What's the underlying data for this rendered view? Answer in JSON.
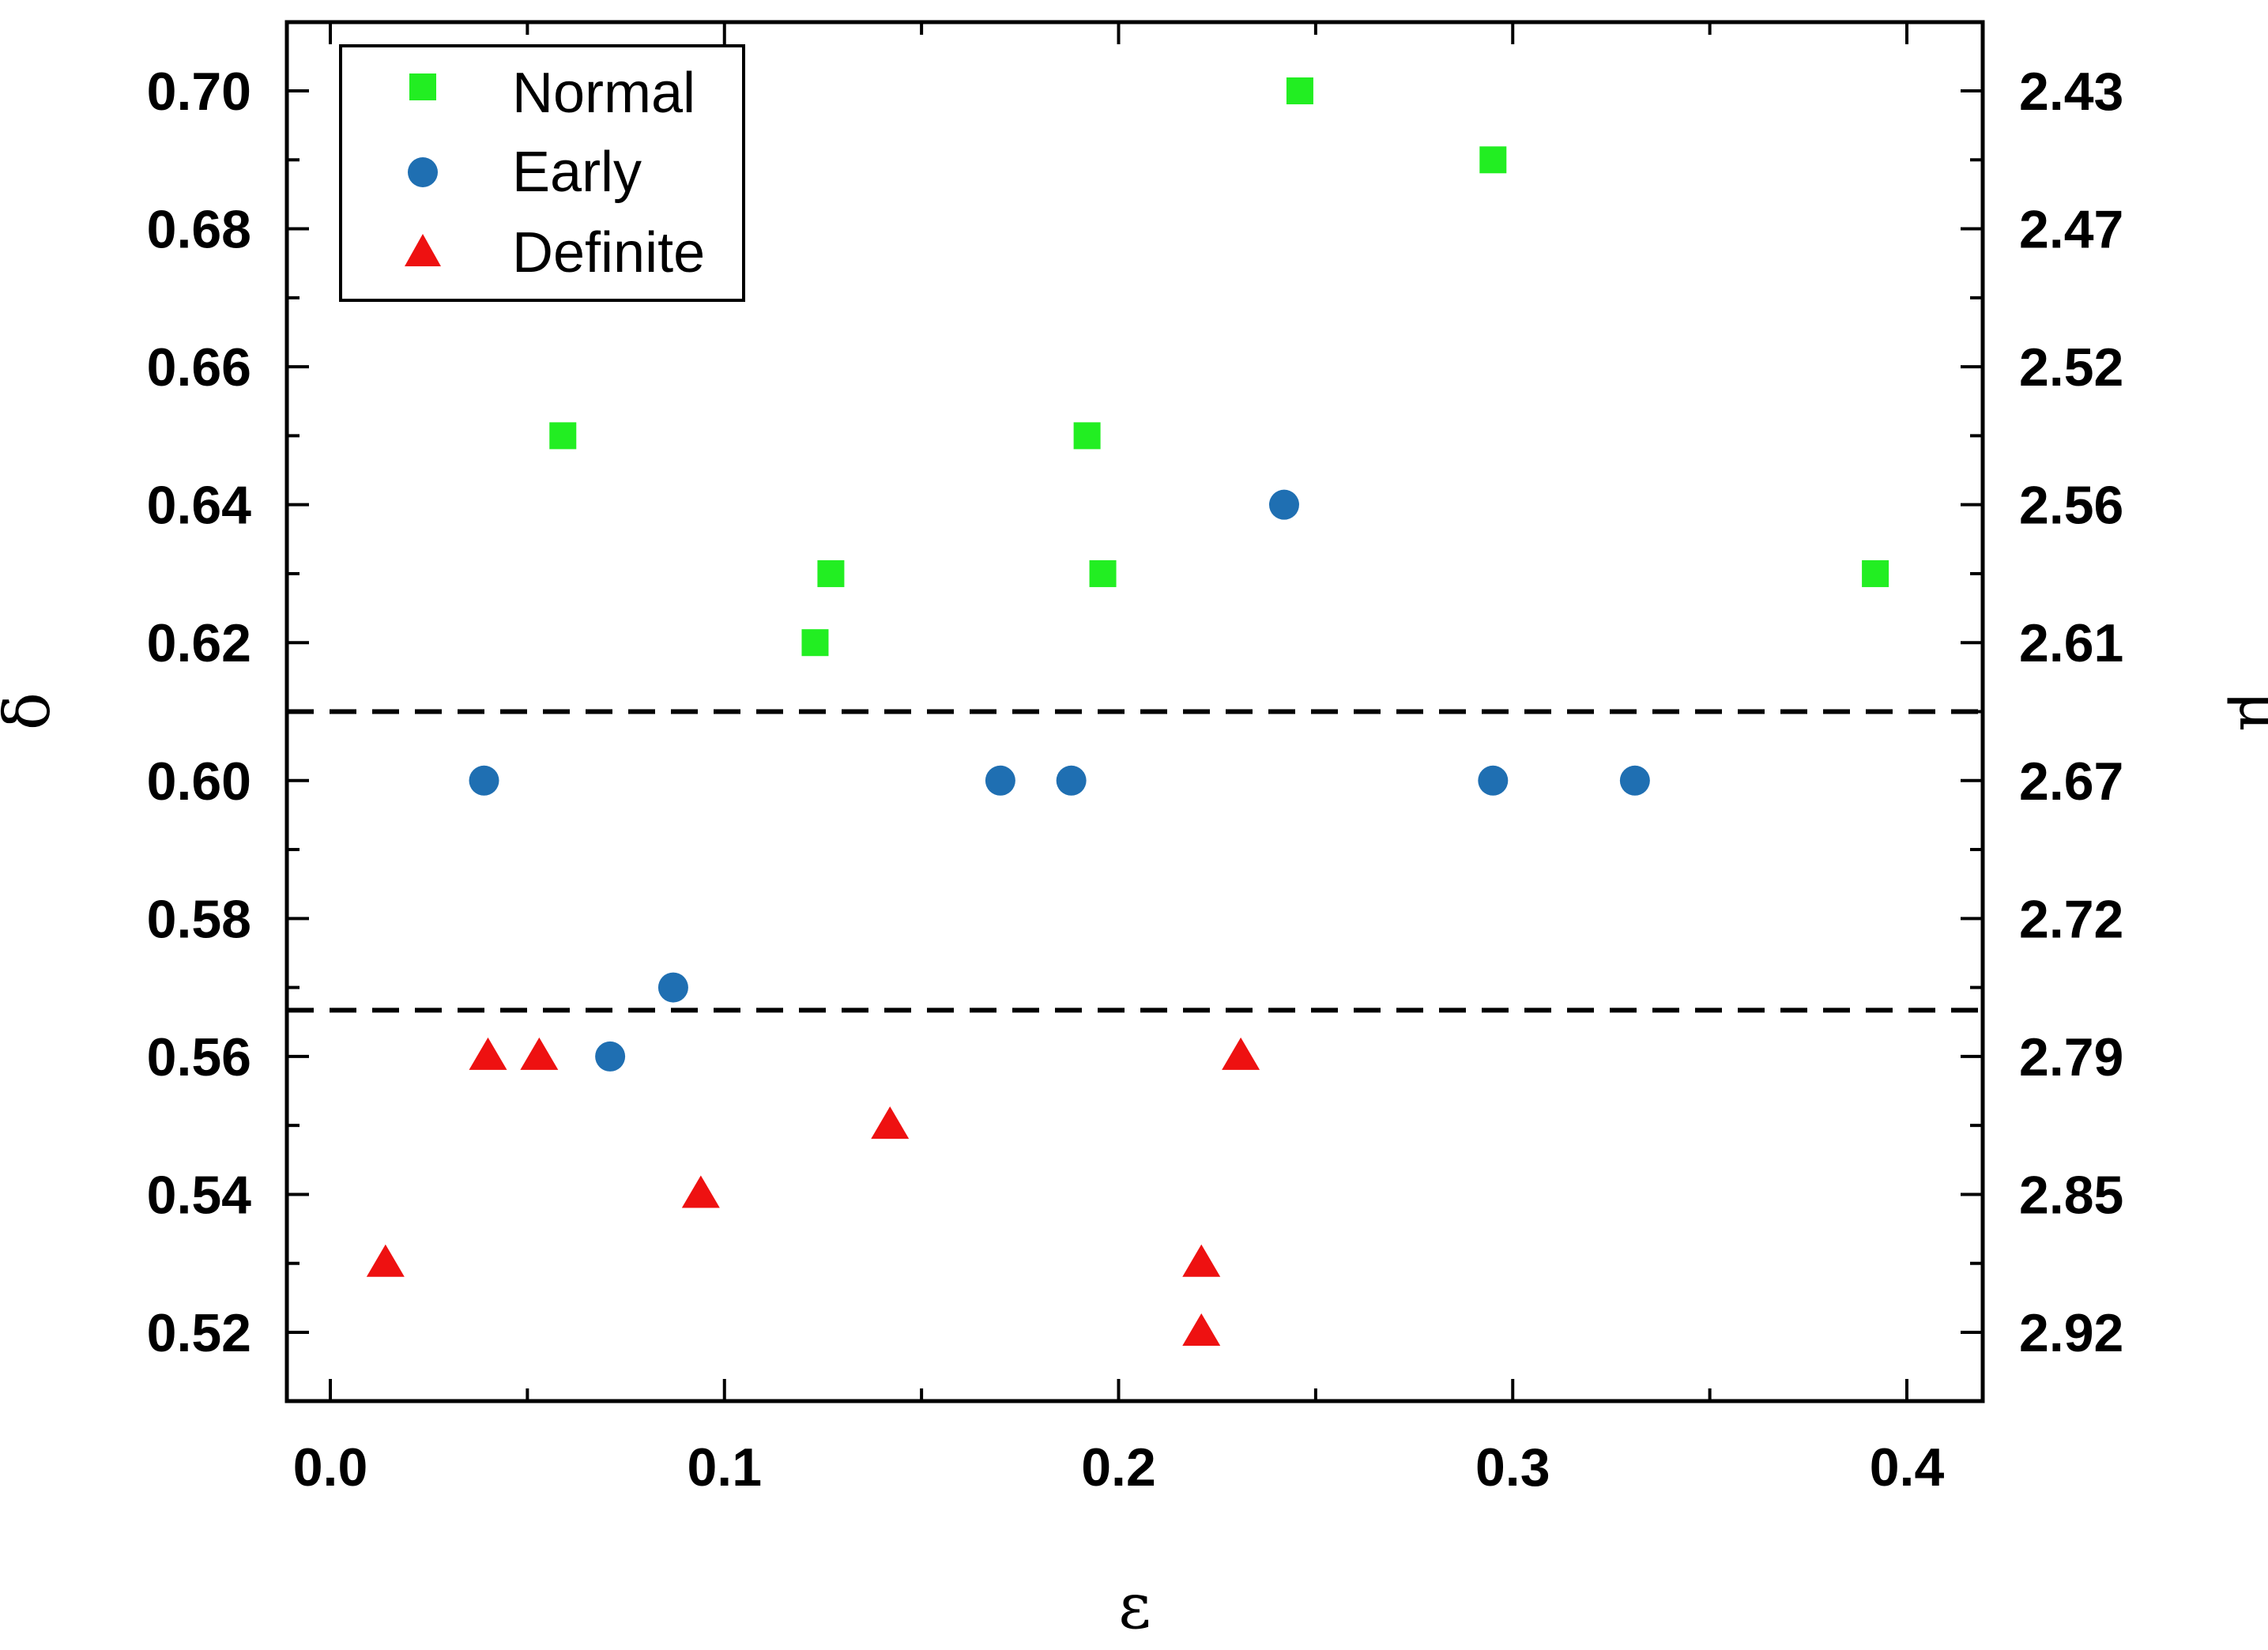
{
  "chart_data": {
    "type": "scatter",
    "title": "",
    "xlabel": "ε",
    "ylabel": "δ",
    "ylabel_right": "μ",
    "xlim": [
      -0.01,
      0.42
    ],
    "ylim": [
      0.51,
      0.71
    ],
    "x_ticks": [
      0.0,
      0.1,
      0.2,
      0.3,
      0.4
    ],
    "x_tick_labels": [
      "0.0",
      "0.1",
      "0.2",
      "0.3",
      "0.4"
    ],
    "y_ticks": [
      0.52,
      0.54,
      0.56,
      0.58,
      0.6,
      0.62,
      0.64,
      0.66,
      0.68,
      0.7
    ],
    "y_tick_labels": [
      "0.52",
      "0.54",
      "0.56",
      "0.58",
      "0.60",
      "0.62",
      "0.64",
      "0.66",
      "0.68",
      "0.70"
    ],
    "right_tick_labels": [
      "2.92",
      "2.85",
      "2.79",
      "2.72",
      "2.67",
      "2.61",
      "2.56",
      "2.52",
      "2.47",
      "2.43"
    ],
    "grid": false,
    "legend_position": "top-left",
    "reference_lines": [
      {
        "style": "dashed",
        "y": 0.61
      },
      {
        "style": "dashed",
        "y": 0.5667
      }
    ],
    "series": [
      {
        "name": "Normal",
        "marker": "square",
        "color": "#22ee22",
        "points": [
          {
            "x": 0.059,
            "y": 0.65
          },
          {
            "x": 0.123,
            "y": 0.62
          },
          {
            "x": 0.127,
            "y": 0.63
          },
          {
            "x": 0.192,
            "y": 0.65
          },
          {
            "x": 0.196,
            "y": 0.63
          },
          {
            "x": 0.246,
            "y": 0.7
          },
          {
            "x": 0.295,
            "y": 0.69
          },
          {
            "x": 0.392,
            "y": 0.63
          }
        ]
      },
      {
        "name": "Early",
        "marker": "circle",
        "color": "#1f6fb2",
        "points": [
          {
            "x": 0.039,
            "y": 0.6
          },
          {
            "x": 0.071,
            "y": 0.56
          },
          {
            "x": 0.087,
            "y": 0.57
          },
          {
            "x": 0.17,
            "y": 0.6
          },
          {
            "x": 0.188,
            "y": 0.6
          },
          {
            "x": 0.242,
            "y": 0.64
          },
          {
            "x": 0.295,
            "y": 0.6
          },
          {
            "x": 0.331,
            "y": 0.6
          }
        ]
      },
      {
        "name": "Definite",
        "marker": "triangle",
        "color": "#ee1111",
        "points": [
          {
            "x": 0.014,
            "y": 0.53
          },
          {
            "x": 0.04,
            "y": 0.56
          },
          {
            "x": 0.053,
            "y": 0.56
          },
          {
            "x": 0.094,
            "y": 0.54
          },
          {
            "x": 0.142,
            "y": 0.55
          },
          {
            "x": 0.221,
            "y": 0.53
          },
          {
            "x": 0.221,
            "y": 0.52
          },
          {
            "x": 0.231,
            "y": 0.56
          }
        ]
      }
    ]
  }
}
